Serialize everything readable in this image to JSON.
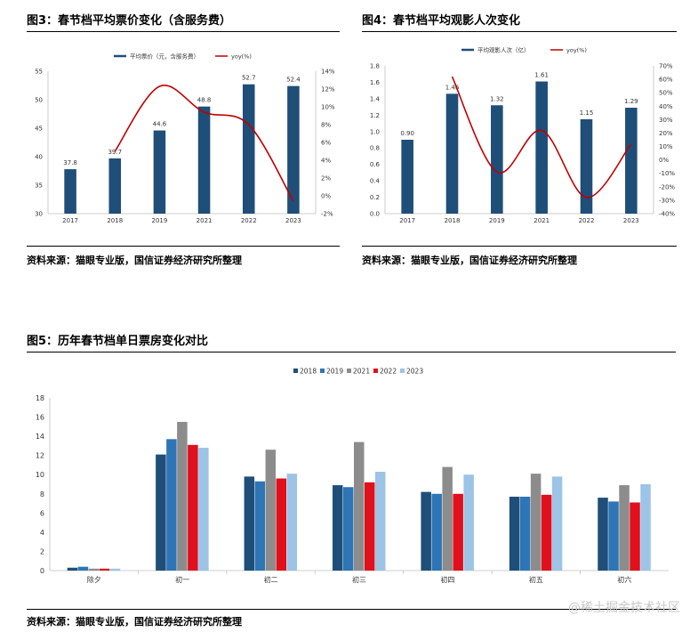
{
  "figures": {
    "fig3": {
      "title": "图3：春节档平均票价变化（含服务费）",
      "source": "资料来源：猫眼专业版，国信证券经济研究所整理"
    },
    "fig4": {
      "title": "图4：春节档平均观影人次变化",
      "source": "资料来源：猫眼专业版，国信证券经济研究所整理"
    },
    "fig5": {
      "title": "图5：历年春节档单日票房变化对比",
      "source": "资料来源：猫眼专业版，国信证券经济研究所整理"
    }
  },
  "watermark": "@稀土掘金技术社区",
  "colors": {
    "bar_navy": "#1f4e79",
    "line_red": "#c00000",
    "s2018": "#1f4e79",
    "s2019": "#2e75b6",
    "s2021": "#8c8c8c",
    "s2022": "#e0101c",
    "s2023": "#9dc3e6"
  },
  "chart_data": [
    {
      "type": "bar",
      "categories": [
        "2017",
        "2018",
        "2019",
        "2021",
        "2022",
        "2023"
      ],
      "series": [
        {
          "name": "平均票价（元，含服务费）",
          "values": [
            37.8,
            39.7,
            44.6,
            48.8,
            52.7,
            52.4
          ],
          "labels": [
            "37.8",
            "39.7",
            "44.6",
            "48.8",
            "52.7",
            "52.4"
          ]
        },
        {
          "name": "yoy(%)",
          "axis": "right",
          "values": [
            null,
            5.0,
            12.3,
            9.4,
            8.0,
            -0.6
          ]
        }
      ],
      "ylim": [
        30,
        55
      ],
      "yticks": [
        "30",
        "35",
        "40",
        "45",
        "50",
        "55"
      ],
      "y2lim": [
        -2,
        14
      ],
      "y2ticks": [
        "-2%",
        "0%",
        "2%",
        "4%",
        "6%",
        "8%",
        "10%",
        "12%",
        "14%"
      ],
      "legend": "top"
    },
    {
      "type": "bar",
      "categories": [
        "2017",
        "2018",
        "2019",
        "2021",
        "2022",
        "2023"
      ],
      "series": [
        {
          "name": "平均观影人次（亿）",
          "values": [
            0.9,
            1.46,
            1.32,
            1.61,
            1.15,
            1.29
          ],
          "labels": [
            "0.90",
            "1.46",
            "1.32",
            "1.61",
            "1.15",
            "1.29"
          ]
        },
        {
          "name": "yoy(%)",
          "axis": "right",
          "values": [
            null,
            62,
            -9,
            22,
            -28,
            12
          ]
        }
      ],
      "ylim": [
        0,
        1.8
      ],
      "yticks": [
        "0.0",
        "0.2",
        "0.4",
        "0.6",
        "0.8",
        "1.0",
        "1.2",
        "1.4",
        "1.6",
        "1.8"
      ],
      "y2lim": [
        -40,
        70
      ],
      "y2ticks": [
        "-40%",
        "-30%",
        "-20%",
        "-10%",
        "0%",
        "10%",
        "20%",
        "30%",
        "40%",
        "50%",
        "60%",
        "70%"
      ],
      "legend": "top"
    },
    {
      "type": "bar",
      "categories": [
        "除夕",
        "初一",
        "初二",
        "初三",
        "初四",
        "初五",
        "初六"
      ],
      "series": [
        {
          "name": "2018",
          "values": [
            0.3,
            12.1,
            9.8,
            8.9,
            8.2,
            7.7,
            7.6
          ]
        },
        {
          "name": "2019",
          "values": [
            0.4,
            13.7,
            9.3,
            8.7,
            8.0,
            7.7,
            7.2
          ]
        },
        {
          "name": "2021",
          "values": [
            0.2,
            15.5,
            12.6,
            13.4,
            10.8,
            10.1,
            8.9
          ]
        },
        {
          "name": "2022",
          "values": [
            0.2,
            13.1,
            9.6,
            9.2,
            8.0,
            7.9,
            7.1
          ]
        },
        {
          "name": "2023",
          "values": [
            0.2,
            12.8,
            10.1,
            10.3,
            10.0,
            9.8,
            9.0
          ]
        }
      ],
      "ylim": [
        0,
        18
      ],
      "yticks": [
        "0",
        "2",
        "4",
        "6",
        "8",
        "10",
        "12",
        "14",
        "16",
        "18"
      ],
      "legend": "top"
    }
  ]
}
